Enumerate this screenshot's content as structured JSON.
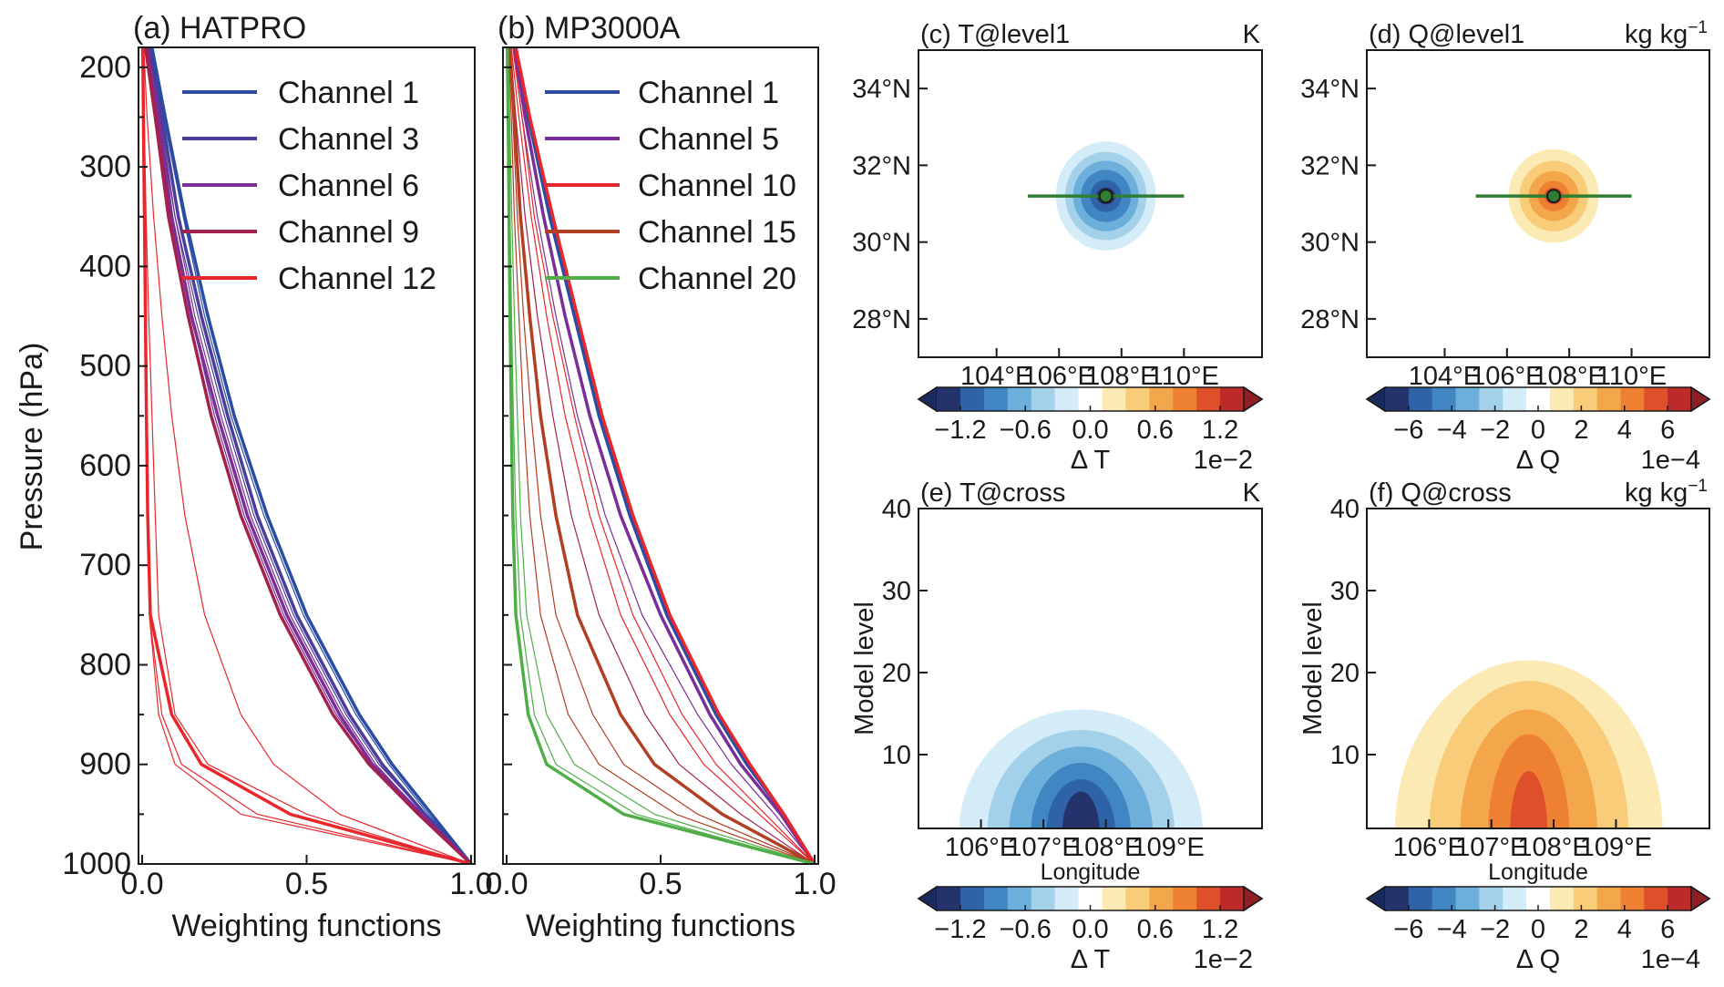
{
  "colors": {
    "ch_blue": "#2a4ca3",
    "ch_indigo": "#4a3d9c",
    "ch_purple": "#7a2e96",
    "ch_crimson": "#a3204f",
    "ch_red": "#e8272d",
    "ch_orange": "#b23f24",
    "ch_green": "#4fae48",
    "cross_line": "#2e7d32"
  },
  "palette": [
    "#24336b",
    "#2f63a8",
    "#3f86c2",
    "#6cafda",
    "#a4d1ea",
    "#d4ecf7",
    "#ffffff",
    "#fbeab4",
    "#f8cc78",
    "#f4a64a",
    "#ee8131",
    "#de4f2b",
    "#bd2a2a"
  ],
  "chart_data": [
    {
      "id": "a",
      "type": "line",
      "title": "(a) HATPRO",
      "xlabel": "Weighting functions",
      "ylabel": "Pressure (hPa)",
      "xlim": [
        0,
        1
      ],
      "ylim": [
        1000,
        180
      ],
      "xticks": [
        "0.0",
        "0.5",
        "1.0"
      ],
      "yticks": [
        "200",
        "300",
        "400",
        "500",
        "600",
        "700",
        "800",
        "900",
        "1000"
      ],
      "pressure_levels": [
        180,
        250,
        350,
        450,
        550,
        650,
        750,
        850,
        900,
        950,
        1000
      ],
      "legend": [
        {
          "label": "Channel 1",
          "color": "ch_blue"
        },
        {
          "label": "Channel 3",
          "color": "ch_indigo"
        },
        {
          "label": "Channel 6",
          "color": "ch_purple"
        },
        {
          "label": "Channel 9",
          "color": "ch_crimson"
        },
        {
          "label": "Channel 12",
          "color": "ch_red"
        }
      ],
      "series": [
        {
          "name": "Channel 1",
          "color": "ch_blue",
          "width": 3.5,
          "values": [
            0.03,
            0.07,
            0.13,
            0.2,
            0.28,
            0.38,
            0.5,
            0.66,
            0.76,
            0.88,
            1.0
          ]
        },
        {
          "name": "Channel 2",
          "color": "ch_blue",
          "width": 1.2,
          "values": [
            0.025,
            0.065,
            0.125,
            0.19,
            0.27,
            0.37,
            0.49,
            0.65,
            0.75,
            0.87,
            1.0
          ]
        },
        {
          "name": "Channel 3",
          "color": "ch_indigo",
          "width": 3.5,
          "values": [
            0.02,
            0.06,
            0.11,
            0.18,
            0.26,
            0.35,
            0.47,
            0.63,
            0.73,
            0.86,
            1.0
          ]
        },
        {
          "name": "Channel 4",
          "color": "ch_indigo",
          "width": 1.2,
          "values": [
            0.02,
            0.055,
            0.1,
            0.17,
            0.25,
            0.34,
            0.46,
            0.62,
            0.72,
            0.86,
            1.0
          ]
        },
        {
          "name": "Channel 5",
          "color": "ch_purple",
          "width": 1.2,
          "values": [
            0.02,
            0.05,
            0.1,
            0.16,
            0.24,
            0.33,
            0.45,
            0.61,
            0.71,
            0.85,
            1.0
          ]
        },
        {
          "name": "Channel 6",
          "color": "ch_purple",
          "width": 3.5,
          "values": [
            0.015,
            0.05,
            0.09,
            0.15,
            0.23,
            0.32,
            0.44,
            0.6,
            0.7,
            0.85,
            1.0
          ]
        },
        {
          "name": "Channel 7",
          "color": "ch_purple",
          "width": 1.2,
          "values": [
            0.015,
            0.045,
            0.09,
            0.15,
            0.22,
            0.31,
            0.43,
            0.59,
            0.7,
            0.84,
            1.0
          ]
        },
        {
          "name": "Channel 8",
          "color": "ch_crimson",
          "width": 1.2,
          "values": [
            0.015,
            0.045,
            0.085,
            0.14,
            0.21,
            0.3,
            0.42,
            0.58,
            0.69,
            0.84,
            1.0
          ]
        },
        {
          "name": "Channel 9",
          "color": "ch_crimson",
          "width": 3.5,
          "values": [
            0.01,
            0.04,
            0.08,
            0.14,
            0.21,
            0.3,
            0.42,
            0.58,
            0.69,
            0.84,
            1.0
          ]
        },
        {
          "name": "Channel 10",
          "color": "ch_red",
          "width": 1.2,
          "values": [
            0.005,
            0.015,
            0.035,
            0.06,
            0.09,
            0.13,
            0.19,
            0.3,
            0.4,
            0.6,
            1.0
          ]
        },
        {
          "name": "Channel 11",
          "color": "ch_red",
          "width": 1.2,
          "values": [
            0.003,
            0.006,
            0.012,
            0.02,
            0.03,
            0.04,
            0.05,
            0.1,
            0.2,
            0.5,
            1.0
          ]
        },
        {
          "name": "Channel 12",
          "color": "ch_red",
          "width": 3.5,
          "values": [
            0.002,
            0.004,
            0.007,
            0.01,
            0.013,
            0.017,
            0.025,
            0.09,
            0.18,
            0.45,
            1.0
          ]
        },
        {
          "name": "Channel 13",
          "color": "ch_red",
          "width": 1.2,
          "values": [
            0.002,
            0.004,
            0.006,
            0.009,
            0.012,
            0.016,
            0.022,
            0.06,
            0.12,
            0.35,
            1.0
          ]
        },
        {
          "name": "Channel 14",
          "color": "ch_red",
          "width": 1.2,
          "values": [
            0.002,
            0.004,
            0.006,
            0.009,
            0.012,
            0.016,
            0.022,
            0.05,
            0.1,
            0.3,
            1.0
          ]
        }
      ]
    },
    {
      "id": "b",
      "type": "line",
      "title": "(b) MP3000A",
      "xlabel": "Weighting functions",
      "ylabel": "",
      "xlim": [
        0,
        1
      ],
      "ylim": [
        1000,
        180
      ],
      "xticks": [
        "0.0",
        "0.5",
        "1.0"
      ],
      "pressure_levels": [
        180,
        250,
        350,
        450,
        550,
        650,
        750,
        850,
        900,
        950,
        1000
      ],
      "legend": [
        {
          "label": "Channel 1",
          "color": "ch_blue"
        },
        {
          "label": "Channel 5",
          "color": "ch_purple"
        },
        {
          "label": "Channel 10",
          "color": "ch_red"
        },
        {
          "label": "Channel 15",
          "color": "ch_orange"
        },
        {
          "label": "Channel 20",
          "color": "ch_green"
        }
      ],
      "series": [
        {
          "name": "Channel 1",
          "color": "ch_blue",
          "width": 3.5,
          "values": [
            0.03,
            0.07,
            0.14,
            0.22,
            0.3,
            0.4,
            0.52,
            0.68,
            0.78,
            0.9,
            1.0
          ]
        },
        {
          "name": "Channel 5",
          "color": "ch_purple",
          "width": 3.5,
          "values": [
            0.025,
            0.06,
            0.12,
            0.19,
            0.27,
            0.37,
            0.5,
            0.66,
            0.76,
            0.89,
            1.0
          ]
        },
        {
          "name": "Channel 7",
          "color": "ch_purple",
          "width": 1.2,
          "values": [
            0.02,
            0.05,
            0.1,
            0.16,
            0.23,
            0.32,
            0.44,
            0.62,
            0.73,
            0.87,
            1.0
          ]
        },
        {
          "name": "Channel 10",
          "color": "ch_red",
          "width": 3.5,
          "values": [
            0.03,
            0.075,
            0.15,
            0.23,
            0.31,
            0.41,
            0.53,
            0.69,
            0.79,
            0.9,
            1.0
          ]
        },
        {
          "name": "Channel 11",
          "color": "ch_red",
          "width": 1.2,
          "values": [
            0.02,
            0.05,
            0.09,
            0.15,
            0.22,
            0.3,
            0.41,
            0.57,
            0.68,
            0.84,
            1.0
          ]
        },
        {
          "name": "Channel 12",
          "color": "ch_red",
          "width": 1.2,
          "values": [
            0.015,
            0.04,
            0.08,
            0.13,
            0.19,
            0.27,
            0.37,
            0.53,
            0.64,
            0.82,
            1.0
          ]
        },
        {
          "name": "Channel 13",
          "color": "ch_crimson",
          "width": 1.2,
          "values": [
            0.012,
            0.03,
            0.06,
            0.1,
            0.15,
            0.21,
            0.3,
            0.45,
            0.56,
            0.76,
            1.0
          ]
        },
        {
          "name": "Channel 15",
          "color": "ch_orange",
          "width": 3.5,
          "values": [
            0.01,
            0.025,
            0.045,
            0.075,
            0.11,
            0.16,
            0.23,
            0.37,
            0.48,
            0.7,
            1.0
          ]
        },
        {
          "name": "Channel 16",
          "color": "ch_orange",
          "width": 1.2,
          "values": [
            0.008,
            0.02,
            0.035,
            0.055,
            0.08,
            0.11,
            0.16,
            0.28,
            0.38,
            0.62,
            1.0
          ]
        },
        {
          "name": "Channel 17",
          "color": "ch_orange",
          "width": 1.2,
          "values": [
            0.006,
            0.015,
            0.025,
            0.04,
            0.055,
            0.075,
            0.11,
            0.2,
            0.3,
            0.55,
            1.0
          ]
        },
        {
          "name": "Channel 18",
          "color": "ch_green",
          "width": 1.2,
          "values": [
            0.004,
            0.01,
            0.017,
            0.025,
            0.035,
            0.045,
            0.065,
            0.13,
            0.22,
            0.48,
            1.0
          ]
        },
        {
          "name": "Channel 19",
          "color": "ch_green",
          "width": 1.2,
          "values": [
            0.003,
            0.007,
            0.011,
            0.016,
            0.022,
            0.03,
            0.045,
            0.09,
            0.16,
            0.42,
            1.0
          ]
        },
        {
          "name": "Channel 20",
          "color": "ch_green",
          "width": 3.5,
          "values": [
            0.002,
            0.005,
            0.008,
            0.011,
            0.015,
            0.02,
            0.03,
            0.07,
            0.13,
            0.38,
            1.0
          ]
        }
      ]
    },
    {
      "id": "c",
      "type": "heatmap",
      "title": "(c) T@level1",
      "unit": "K",
      "lon_range": [
        101.5,
        112.5
      ],
      "lat_range": [
        27,
        35
      ],
      "xticks": [
        {
          "value": 104,
          "label": "104°E"
        },
        {
          "value": 106,
          "label": "106°E"
        },
        {
          "value": 108,
          "label": "108°E"
        },
        {
          "value": 110,
          "label": "110°E"
        }
      ],
      "yticks": [
        {
          "value": 28,
          "label": "28°N"
        },
        {
          "value": 30,
          "label": "30°N"
        },
        {
          "value": 32,
          "label": "32°N"
        },
        {
          "value": 34,
          "label": "34°N"
        }
      ],
      "center": {
        "lon": 107.5,
        "lat": 31.2
      },
      "cross_section_line": {
        "lon_start": 105,
        "lon_end": 110,
        "lat": 31.2
      },
      "blob_level_radii": [
        {
          "level": 0,
          "rx": 0.3,
          "ry": 0.22
        },
        {
          "level": 1,
          "rx": 0.5,
          "ry": 0.42
        },
        {
          "level": 2,
          "rx": 0.8,
          "ry": 0.68
        },
        {
          "level": 3,
          "rx": 1.05,
          "ry": 0.92
        },
        {
          "level": 4,
          "rx": 1.3,
          "ry": 1.15
        },
        {
          "level": 5,
          "rx": 1.6,
          "ry": 1.42
        }
      ],
      "colorbar": {
        "ticks": [
          "−1.2",
          "−0.6",
          "0.0",
          "0.6",
          "1.2"
        ],
        "label": "Δ T",
        "scale": "1e−2"
      }
    },
    {
      "id": "d",
      "type": "heatmap",
      "title": "(d) Q@level1",
      "unit": "kg kg",
      "unit_exp": "−1",
      "lon_range": [
        101.5,
        112.5
      ],
      "lat_range": [
        27,
        35
      ],
      "xticks": [
        {
          "value": 104,
          "label": "104°E"
        },
        {
          "value": 106,
          "label": "106°E"
        },
        {
          "value": 108,
          "label": "108°E"
        },
        {
          "value": 110,
          "label": "110°E"
        }
      ],
      "yticks": [
        {
          "value": 28,
          "label": "28°N"
        },
        {
          "value": 30,
          "label": "30°N"
        },
        {
          "value": 32,
          "label": "32°N"
        },
        {
          "value": 34,
          "label": "34°N"
        }
      ],
      "center": {
        "lon": 107.5,
        "lat": 31.2
      },
      "cross_section_line": {
        "lon_start": 105,
        "lon_end": 110,
        "lat": 31.2
      },
      "blob_level_radii": [
        {
          "level": 11,
          "rx": 0.3,
          "ry": 0.22
        },
        {
          "level": 10,
          "rx": 0.5,
          "ry": 0.4
        },
        {
          "level": 9,
          "rx": 0.8,
          "ry": 0.65
        },
        {
          "level": 8,
          "rx": 1.1,
          "ry": 0.92
        },
        {
          "level": 7,
          "rx": 1.45,
          "ry": 1.22
        }
      ],
      "colorbar": {
        "ticks": [
          "−6",
          "−4",
          "−2",
          "0",
          "2",
          "4",
          "6"
        ],
        "label": "Δ Q",
        "scale": "1e−4"
      }
    },
    {
      "id": "e",
      "type": "heatmap",
      "title": "(e) T@cross",
      "unit": "K",
      "xlabel": "Longitude",
      "ylabel": "Model level",
      "lon_range": [
        105,
        110.5
      ],
      "level_range": [
        1,
        40
      ],
      "xticks": [
        {
          "value": 106,
          "label": "106°E"
        },
        {
          "value": 107,
          "label": "107°E"
        },
        {
          "value": 108,
          "label": "108°E"
        },
        {
          "value": 109,
          "label": "109°E"
        }
      ],
      "yticks": [
        {
          "value": 10,
          "label": "10"
        },
        {
          "value": 20,
          "label": "20"
        },
        {
          "value": 30,
          "label": "30"
        },
        {
          "value": 40,
          "label": "40"
        }
      ],
      "center_lon": 107.6,
      "blob_level_extents": [
        {
          "level": 5,
          "half_width": 1.95,
          "top": 15.5
        },
        {
          "level": 4,
          "half_width": 1.5,
          "top": 13
        },
        {
          "level": 3,
          "half_width": 1.15,
          "top": 11
        },
        {
          "level": 2,
          "half_width": 0.8,
          "top": 9
        },
        {
          "level": 1,
          "half_width": 0.55,
          "top": 7
        },
        {
          "level": 0,
          "half_width": 0.3,
          "top": 5.5
        }
      ],
      "colorbar": {
        "ticks": [
          "−1.2",
          "−0.6",
          "0.0",
          "0.6",
          "1.2"
        ],
        "label": "Δ T",
        "scale": "1e−2"
      }
    },
    {
      "id": "f",
      "type": "heatmap",
      "title": "(f) Q@cross",
      "unit": "kg kg",
      "unit_exp": "−1",
      "xlabel": "Longitude",
      "ylabel": "Model level",
      "lon_range": [
        105,
        110.5
      ],
      "level_range": [
        1,
        40
      ],
      "xticks": [
        {
          "value": 106,
          "label": "106°E"
        },
        {
          "value": 107,
          "label": "107°E"
        },
        {
          "value": 108,
          "label": "108°E"
        },
        {
          "value": 109,
          "label": "109°E"
        }
      ],
      "yticks": [
        {
          "value": 10,
          "label": "10"
        },
        {
          "value": 20,
          "label": "20"
        },
        {
          "value": 30,
          "label": "30"
        },
        {
          "value": 40,
          "label": "40"
        }
      ],
      "center_lon": 107.6,
      "blob_level_extents": [
        {
          "level": 7,
          "half_width": 2.15,
          "top": 21.5
        },
        {
          "level": 8,
          "half_width": 1.6,
          "top": 19
        },
        {
          "level": 9,
          "half_width": 1.1,
          "top": 15.5
        },
        {
          "level": 10,
          "half_width": 0.65,
          "top": 12.5
        },
        {
          "level": 11,
          "half_width": 0.3,
          "top": 8
        }
      ],
      "colorbar": {
        "ticks": [
          "−6",
          "−4",
          "−2",
          "0",
          "2",
          "4",
          "6"
        ],
        "label": "Δ Q",
        "scale": "1e−4"
      }
    }
  ]
}
